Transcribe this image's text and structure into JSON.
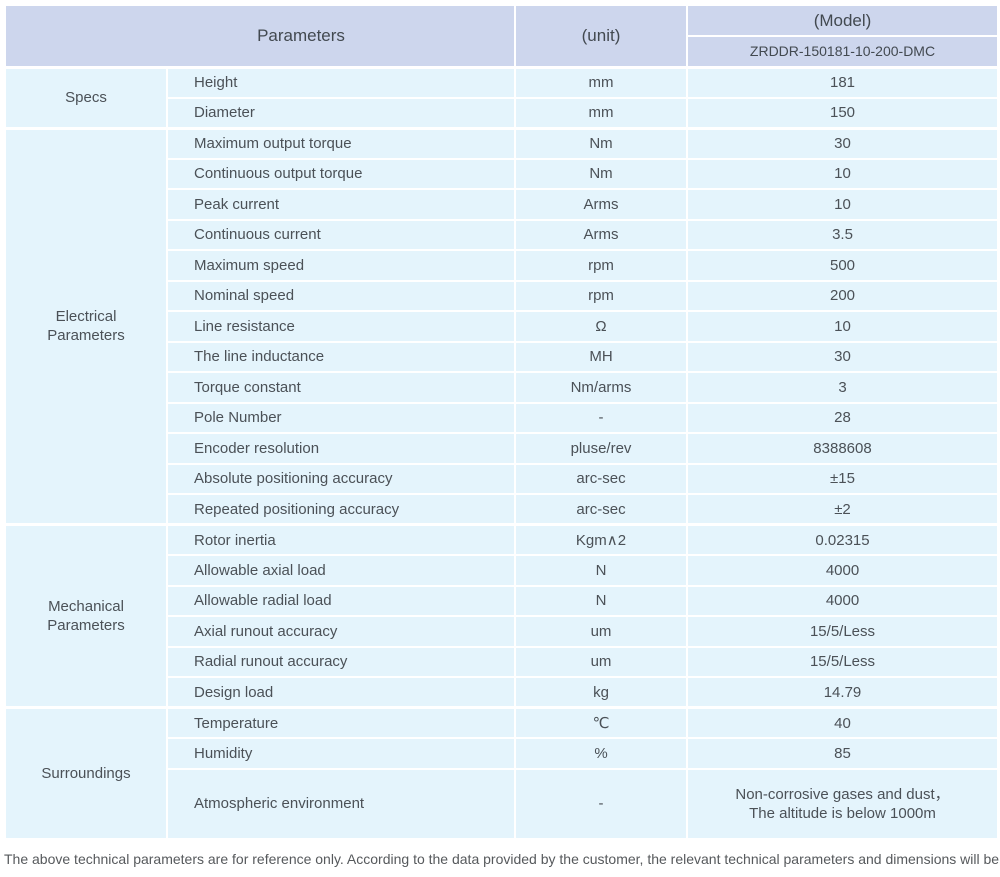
{
  "theme": {
    "header_bg": "#cdd6ed",
    "body_bg": "#e4f4fc",
    "border": "#ffffff",
    "text": "#4b5157"
  },
  "table": {
    "header": {
      "parameters_label": "Parameters",
      "unit_label": "(unit)",
      "model_label": "(Model)",
      "model_value": "ZRDDR-150181-10-200-DMC"
    },
    "sections": [
      {
        "name": "Specs",
        "rows": [
          {
            "param": "Height",
            "unit": "mm",
            "value": "181"
          },
          {
            "param": "Diameter",
            "unit": "mm",
            "value": "150"
          }
        ]
      },
      {
        "name": "Electrical Parameters",
        "rows": [
          {
            "param": "Maximum output torque",
            "unit": "Nm",
            "value": "30"
          },
          {
            "param": "Continuous output torque",
            "unit": "Nm",
            "value": "10"
          },
          {
            "param": "Peak current",
            "unit": "Arms",
            "value": "10"
          },
          {
            "param": "Continuous current",
            "unit": "Arms",
            "value": "3.5"
          },
          {
            "param": "Maximum speed",
            "unit": "rpm",
            "value": "500"
          },
          {
            "param": "Nominal speed",
            "unit": "rpm",
            "value": "200"
          },
          {
            "param": "Line resistance",
            "unit": "Ω",
            "value": "10"
          },
          {
            "param": "The line inductance",
            "unit": "MH",
            "value": "30"
          },
          {
            "param": "Torque constant",
            "unit": "Nm/arms",
            "value": "3"
          },
          {
            "param": "Pole Number",
            "unit": "-",
            "value": "28"
          },
          {
            "param": "Encoder resolution",
            "unit": "pluse/rev",
            "value": "8388608"
          },
          {
            "param": "Absolute positioning accuracy",
            "unit": "arc-sec",
            "value": "±15"
          },
          {
            "param": "Repeated positioning accuracy",
            "unit": "arc-sec",
            "value": "±2"
          }
        ]
      },
      {
        "name": "Mechanical Parameters",
        "rows": [
          {
            "param": "Rotor inertia",
            "unit": "Kgm∧2",
            "value": "0.02315"
          },
          {
            "param": "Allowable axial load",
            "unit": "N",
            "value": "4000"
          },
          {
            "param": "Allowable radial load",
            "unit": "N",
            "value": "4000"
          },
          {
            "param": "Axial runout accuracy",
            "unit": "um",
            "value": "15/5/Less"
          },
          {
            "param": "Radial runout accuracy",
            "unit": "um",
            "value": "15/5/Less"
          },
          {
            "param": "Design load",
            "unit": "kg",
            "value": "14.79"
          }
        ]
      },
      {
        "name": "Surroundings",
        "rows": [
          {
            "param": "Temperature",
            "unit": "℃",
            "value": "40"
          },
          {
            "param": "Humidity",
            "unit": "%",
            "value": "85"
          },
          {
            "param": "Atmospheric environment",
            "unit": "-",
            "value": "Non-corrosive gases and dust，\nThe altitude is below 1000m"
          }
        ]
      }
    ],
    "footnote": "The above technical parameters are for reference only. According to the data provided by the customer, the relevant technical parameters and dimensions will be issued."
  }
}
